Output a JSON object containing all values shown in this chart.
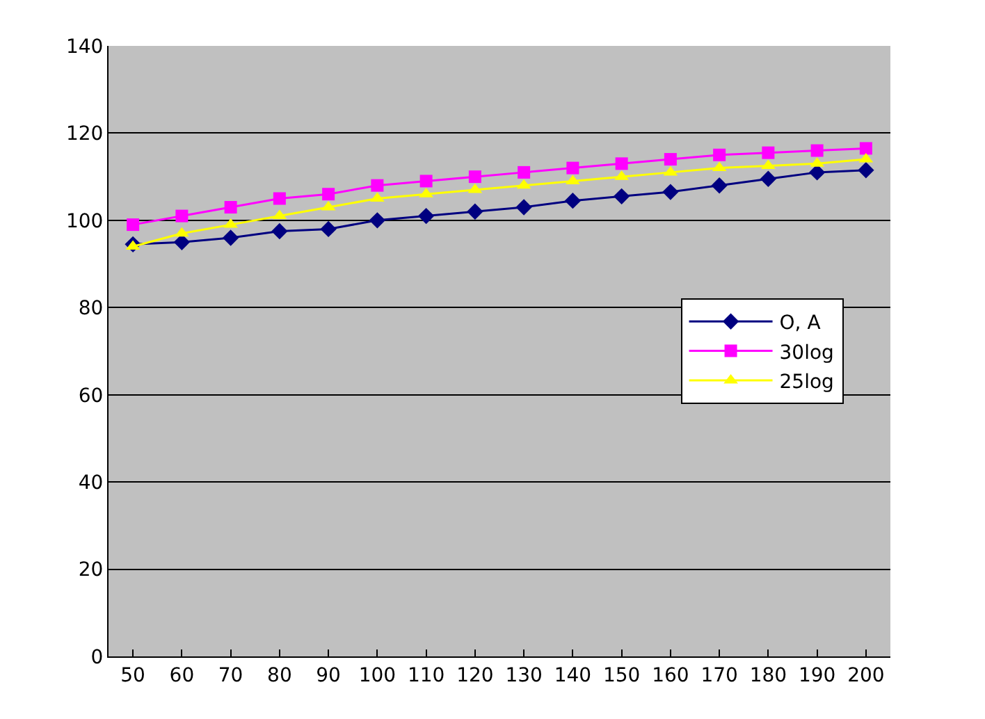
{
  "chart_data": {
    "type": "line",
    "categories": [
      "50",
      "60",
      "70",
      "80",
      "90",
      "100",
      "110",
      "120",
      "130",
      "140",
      "150",
      "160",
      "170",
      "180",
      "190",
      "200"
    ],
    "series": [
      {
        "name": "O, A",
        "color": "#000080",
        "marker": "diamond",
        "values": [
          94.5,
          95,
          96,
          97.5,
          98,
          100,
          101,
          102,
          103,
          104.5,
          105.5,
          106.5,
          108,
          109.5,
          111,
          111.5
        ]
      },
      {
        "name": "30log",
        "color": "#ff00ff",
        "marker": "square",
        "values": [
          99,
          101,
          103,
          105,
          106,
          108,
          109,
          110,
          111,
          112,
          113,
          114,
          115,
          115.5,
          116,
          116.5
        ]
      },
      {
        "name": "25log",
        "color": "#ffff00",
        "marker": "triangle",
        "values": [
          94,
          97,
          99,
          101,
          103,
          105,
          106,
          107,
          108,
          109,
          110,
          111,
          112,
          112.5,
          113,
          114
        ]
      }
    ],
    "ylim": [
      0,
      140
    ],
    "yticks": [
      0,
      20,
      40,
      60,
      80,
      100,
      120,
      140
    ],
    "grid": "y",
    "legend": "right"
  }
}
